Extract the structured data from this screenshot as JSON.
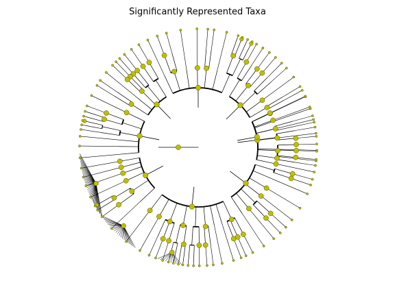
{
  "figure": {
    "title": "Significantly Represented Taxa"
  },
  "style": {
    "node_fill": "#bfbf00",
    "node_stroke": "#4d4d00",
    "branch_color": "#000000",
    "background": "#ffffff"
  },
  "tree": {
    "layout": "circular cladogram",
    "levels": 7,
    "clades": [
      {
        "from": 62,
        "to": 118,
        "children": 7
      },
      {
        "from": 118,
        "to": 150,
        "children": 5
      },
      {
        "from": 150,
        "to": 188,
        "children": 6
      },
      {
        "from": 188,
        "to": 228,
        "children": 6
      },
      {
        "from": 228,
        "to": 300,
        "children": 9
      },
      {
        "from": 300,
        "to": 346,
        "children": 7
      },
      {
        "from": 346,
        "to": 388,
        "children": 7
      },
      {
        "from": 28,
        "to": 62,
        "children": 5
      },
      {
        "from": -8,
        "to": 28,
        "children": 5
      }
    ]
  }
}
